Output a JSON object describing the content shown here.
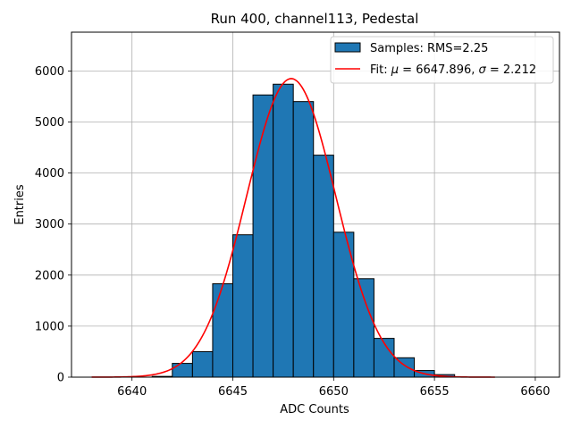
{
  "chart_data": {
    "type": "bar",
    "title": "Run 400, channel113, Pedestal",
    "xlabel": "ADC Counts",
    "ylabel": "Entries",
    "xlim": [
      6637,
      6661.2
    ],
    "ylim": [
      0,
      6760
    ],
    "xticks": [
      "6640",
      "6645",
      "6650",
      "6655",
      "6660"
    ],
    "xtick_values": [
      6640,
      6645,
      6650,
      6655,
      6660
    ],
    "yticks": [
      "0",
      "1000",
      "2000",
      "3000",
      "4000",
      "5000",
      "6000"
    ],
    "ytick_values": [
      0,
      1000,
      2000,
      3000,
      4000,
      5000,
      6000
    ],
    "grid": true,
    "legend_position": "top-right",
    "histogram": {
      "name": "Samples: RMS=2.25",
      "color": "#1f77b4",
      "edgecolor": "#000000",
      "bins": [
        {
          "x0": 6641,
          "x1": 6642,
          "count": 15
        },
        {
          "x0": 6642,
          "x1": 6643,
          "count": 270
        },
        {
          "x0": 6643,
          "x1": 6644,
          "count": 500
        },
        {
          "x0": 6644,
          "x1": 6645,
          "count": 1830
        },
        {
          "x0": 6645,
          "x1": 6646,
          "count": 2790
        },
        {
          "x0": 6646,
          "x1": 6647,
          "count": 5530
        },
        {
          "x0": 6647,
          "x1": 6648,
          "count": 5740
        },
        {
          "x0": 6648,
          "x1": 6649,
          "count": 5400
        },
        {
          "x0": 6649,
          "x1": 6650,
          "count": 4350
        },
        {
          "x0": 6650,
          "x1": 6651,
          "count": 2840
        },
        {
          "x0": 6651,
          "x1": 6652,
          "count": 1930
        },
        {
          "x0": 6652,
          "x1": 6653,
          "count": 760
        },
        {
          "x0": 6653,
          "x1": 6654,
          "count": 380
        },
        {
          "x0": 6654,
          "x1": 6655,
          "count": 130
        },
        {
          "x0": 6655,
          "x1": 6656,
          "count": 50
        }
      ]
    },
    "fit": {
      "name_prefix": "Fit: ",
      "mu_label": "μ",
      "mu_text": " = 6647.896, ",
      "sigma_label": "σ",
      "sigma_text": " = 2.212",
      "color": "#ff0000",
      "mu": 6647.896,
      "sigma": 2.212,
      "amplitude": 5850,
      "x_range": [
        6638,
        6658
      ]
    }
  }
}
